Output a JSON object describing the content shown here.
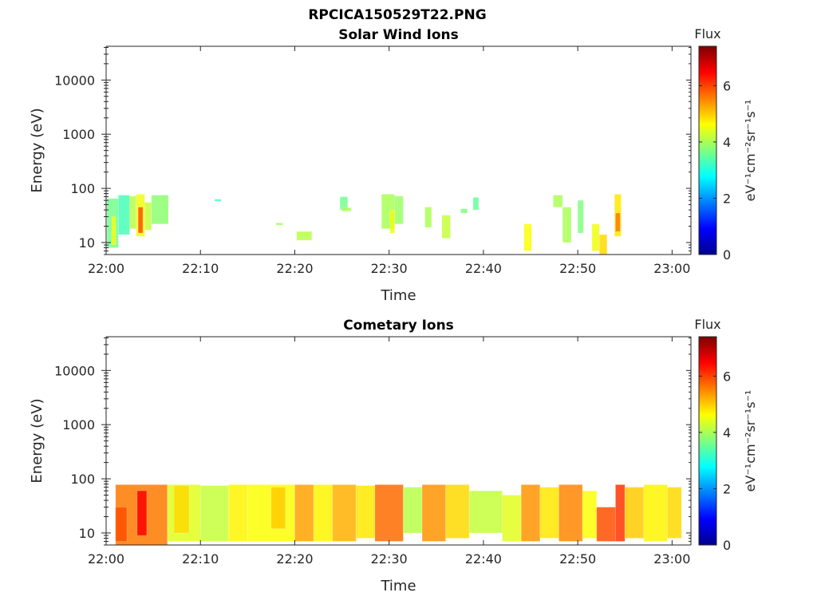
{
  "figure_title": "RPCICA150529T22.PNG",
  "chart_data": [
    {
      "type": "heatmap",
      "title": "Solar Wind Ions",
      "xlabel": "Time",
      "ylabel": "Energy (eV)",
      "x_ticks": [
        "22:00",
        "22:10",
        "22:20",
        "22:30",
        "22:40",
        "22:50",
        "23:00"
      ],
      "xlim_minutes": [
        0,
        62
      ],
      "y_scale": "log",
      "y_ticks": [
        10,
        100,
        1000,
        10000
      ],
      "y_tick_labels": [
        "10",
        "100",
        "1000",
        "10000"
      ],
      "ylim": [
        6,
        42000
      ],
      "colorbar": {
        "title": "Flux",
        "label": "eV⁻¹cm⁻²sr⁻¹s⁻¹",
        "range": [
          0,
          7.4
        ],
        "ticks": [
          "0",
          "2",
          "4",
          "6"
        ],
        "colormap": "jet"
      },
      "blocks": [
        {
          "t0": 0.1,
          "t1": 1.3,
          "e0": 8,
          "e1": 65,
          "v": 3.6
        },
        {
          "t0": 0.6,
          "t1": 1.0,
          "e0": 9,
          "e1": 30,
          "v": 4.6
        },
        {
          "t0": 1.3,
          "t1": 2.5,
          "e0": 14,
          "e1": 75,
          "v": 3.3
        },
        {
          "t0": 2.5,
          "t1": 3.2,
          "e0": 18,
          "e1": 72,
          "v": 4.1
        },
        {
          "t0": 3.2,
          "t1": 4.1,
          "e0": 13,
          "e1": 78,
          "v": 4.5
        },
        {
          "t0": 3.4,
          "t1": 3.9,
          "e0": 15,
          "e1": 45,
          "v": 5.9
        },
        {
          "t0": 4.1,
          "t1": 4.8,
          "e0": 17,
          "e1": 55,
          "v": 4.2
        },
        {
          "t0": 4.8,
          "t1": 6.6,
          "e0": 22,
          "e1": 75,
          "v": 3.8
        },
        {
          "t0": 11.5,
          "t1": 12.2,
          "e0": 58,
          "e1": 63,
          "v": 3.3
        },
        {
          "t0": 18.0,
          "t1": 18.7,
          "e0": 21,
          "e1": 23,
          "v": 3.9
        },
        {
          "t0": 20.2,
          "t1": 21.8,
          "e0": 11,
          "e1": 16,
          "v": 4.1
        },
        {
          "t0": 24.8,
          "t1": 25.6,
          "e0": 40,
          "e1": 70,
          "v": 3.6
        },
        {
          "t0": 25.0,
          "t1": 26.0,
          "e0": 38,
          "e1": 44,
          "v": 4.0
        },
        {
          "t0": 29.2,
          "t1": 30.6,
          "e0": 18,
          "e1": 78,
          "v": 4.0
        },
        {
          "t0": 30.1,
          "t1": 30.6,
          "e0": 15,
          "e1": 40,
          "v": 4.5
        },
        {
          "t0": 30.6,
          "t1": 31.5,
          "e0": 22,
          "e1": 72,
          "v": 3.9
        },
        {
          "t0": 33.8,
          "t1": 34.5,
          "e0": 19,
          "e1": 45,
          "v": 4.0
        },
        {
          "t0": 35.6,
          "t1": 36.5,
          "e0": 12,
          "e1": 32,
          "v": 4.2
        },
        {
          "t0": 37.6,
          "t1": 38.3,
          "e0": 35,
          "e1": 42,
          "v": 3.7
        },
        {
          "t0": 38.9,
          "t1": 39.5,
          "e0": 40,
          "e1": 68,
          "v": 3.5
        },
        {
          "t0": 44.3,
          "t1": 45.1,
          "e0": 7,
          "e1": 22,
          "v": 4.6
        },
        {
          "t0": 47.4,
          "t1": 48.4,
          "e0": 45,
          "e1": 75,
          "v": 4.0
        },
        {
          "t0": 48.4,
          "t1": 49.3,
          "e0": 10,
          "e1": 45,
          "v": 4.0
        },
        {
          "t0": 50.0,
          "t1": 50.6,
          "e0": 15,
          "e1": 60,
          "v": 3.7
        },
        {
          "t0": 51.5,
          "t1": 52.3,
          "e0": 7,
          "e1": 22,
          "v": 4.5
        },
        {
          "t0": 52.3,
          "t1": 53.1,
          "e0": 6,
          "e1": 14,
          "v": 4.9
        },
        {
          "t0": 53.9,
          "t1": 54.6,
          "e0": 13,
          "e1": 78,
          "v": 4.8
        },
        {
          "t0": 54.0,
          "t1": 54.5,
          "e0": 16,
          "e1": 35,
          "v": 5.6
        }
      ]
    },
    {
      "type": "heatmap",
      "title": "Cometary Ions",
      "xlabel": "Time",
      "ylabel": "Energy (eV)",
      "x_ticks": [
        "22:00",
        "22:10",
        "22:20",
        "22:30",
        "22:40",
        "22:50",
        "23:00"
      ],
      "xlim_minutes": [
        0,
        62
      ],
      "y_scale": "log",
      "y_ticks": [
        10,
        100,
        1000,
        10000
      ],
      "y_tick_labels": [
        "10",
        "100",
        "1000",
        "10000"
      ],
      "ylim": [
        6,
        42000
      ],
      "colorbar": {
        "title": "Flux",
        "label": "eV⁻¹cm⁻²sr⁻¹s⁻¹",
        "range": [
          0,
          7.4
        ],
        "ticks": [
          "0",
          "2",
          "4",
          "6"
        ],
        "colormap": "jet"
      },
      "blocks": [
        {
          "t0": 1.0,
          "t1": 6.5,
          "e0": 6,
          "e1": 78,
          "v": 5.6
        },
        {
          "t0": 3.3,
          "t1": 4.3,
          "e0": 9,
          "e1": 60,
          "v": 6.5
        },
        {
          "t0": 1.0,
          "t1": 2.2,
          "e0": 7,
          "e1": 30,
          "v": 5.9
        },
        {
          "t0": 6.5,
          "t1": 10.0,
          "e0": 7,
          "e1": 78,
          "v": 4.4
        },
        {
          "t0": 7.2,
          "t1": 8.8,
          "e0": 10,
          "e1": 75,
          "v": 4.9
        },
        {
          "t0": 10.0,
          "t1": 13.0,
          "e0": 7,
          "e1": 75,
          "v": 4.2
        },
        {
          "t0": 13.0,
          "t1": 15.0,
          "e0": 7,
          "e1": 78,
          "v": 4.7
        },
        {
          "t0": 15.0,
          "t1": 20.0,
          "e0": 7,
          "e1": 78,
          "v": 4.6
        },
        {
          "t0": 17.5,
          "t1": 19.0,
          "e0": 12,
          "e1": 70,
          "v": 5.0
        },
        {
          "t0": 20.0,
          "t1": 22.0,
          "e0": 7,
          "e1": 78,
          "v": 5.3
        },
        {
          "t0": 22.0,
          "t1": 24.0,
          "e0": 7,
          "e1": 78,
          "v": 4.7
        },
        {
          "t0": 24.0,
          "t1": 26.5,
          "e0": 7,
          "e1": 78,
          "v": 5.2
        },
        {
          "t0": 26.5,
          "t1": 28.5,
          "e0": 8,
          "e1": 75,
          "v": 4.8
        },
        {
          "t0": 28.5,
          "t1": 31.5,
          "e0": 7,
          "e1": 78,
          "v": 5.7
        },
        {
          "t0": 31.5,
          "t1": 33.5,
          "e0": 10,
          "e1": 70,
          "v": 4.1
        },
        {
          "t0": 33.5,
          "t1": 36.0,
          "e0": 7,
          "e1": 78,
          "v": 5.4
        },
        {
          "t0": 36.0,
          "t1": 38.5,
          "e0": 8,
          "e1": 78,
          "v": 4.9
        },
        {
          "t0": 38.5,
          "t1": 42.0,
          "e0": 10,
          "e1": 60,
          "v": 4.2
        },
        {
          "t0": 42.0,
          "t1": 44.0,
          "e0": 7,
          "e1": 50,
          "v": 4.4
        },
        {
          "t0": 44.0,
          "t1": 46.0,
          "e0": 7,
          "e1": 78,
          "v": 5.4
        },
        {
          "t0": 46.0,
          "t1": 48.0,
          "e0": 8,
          "e1": 70,
          "v": 4.8
        },
        {
          "t0": 48.0,
          "t1": 50.5,
          "e0": 7,
          "e1": 78,
          "v": 5.5
        },
        {
          "t0": 50.5,
          "t1": 52.0,
          "e0": 8,
          "e1": 60,
          "v": 4.6
        },
        {
          "t0": 52.0,
          "t1": 54.0,
          "e0": 7,
          "e1": 30,
          "v": 5.9
        },
        {
          "t0": 54.0,
          "t1": 55.0,
          "e0": 7,
          "e1": 78,
          "v": 6.1
        },
        {
          "t0": 55.0,
          "t1": 57.0,
          "e0": 8,
          "e1": 70,
          "v": 5.0
        },
        {
          "t0": 57.0,
          "t1": 59.5,
          "e0": 7,
          "e1": 78,
          "v": 4.7
        },
        {
          "t0": 59.5,
          "t1": 61.0,
          "e0": 8,
          "e1": 70,
          "v": 4.9
        }
      ]
    }
  ]
}
